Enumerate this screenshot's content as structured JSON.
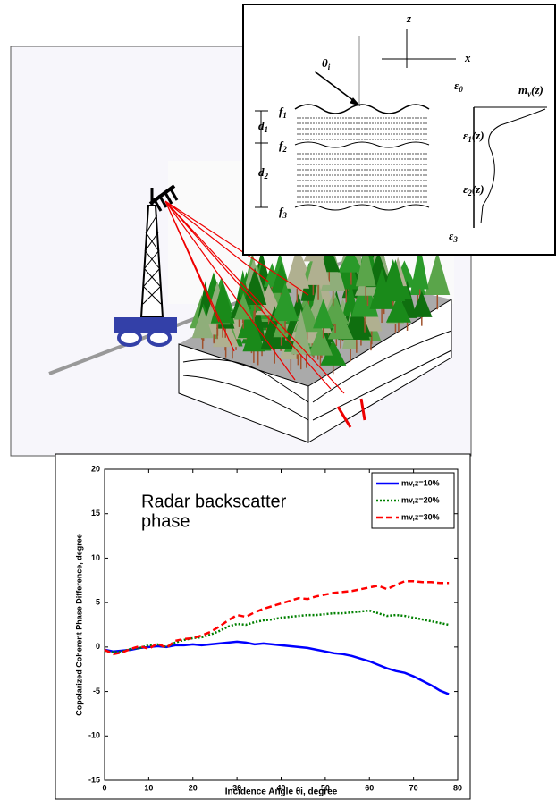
{
  "inset": {
    "labels": [
      {
        "text": "z",
        "sub": ""
      },
      {
        "text": "x",
        "sub": ""
      },
      {
        "text": "θ",
        "sub": "i"
      },
      {
        "text": "ε",
        "sub": "0"
      },
      {
        "text": "m",
        "sub": "v",
        "tail": "(z)"
      },
      {
        "text": "f",
        "sub": "1"
      },
      {
        "text": "d",
        "sub": "1"
      },
      {
        "text": "f",
        "sub": "2"
      },
      {
        "text": "ε",
        "sub": "1",
        "tail": "(z)"
      },
      {
        "text": "d",
        "sub": "2"
      },
      {
        "text": "ε",
        "sub": "2",
        "tail": "(z)"
      },
      {
        "text": "f",
        "sub": "3"
      },
      {
        "text": "ε",
        "sub": "3"
      }
    ]
  },
  "chart_data": {
    "type": "line",
    "annotation": [
      "Radar backscatter",
      "phase"
    ],
    "x_label": "Incidence Angle θi, degree",
    "y_label": "Copolarized Coherent Phase Difference, degree",
    "x": [
      0,
      2,
      4,
      6,
      8,
      10,
      12,
      14,
      16,
      18,
      20,
      22,
      24,
      26,
      28,
      30,
      32,
      34,
      36,
      38,
      40,
      42,
      44,
      46,
      48,
      50,
      52,
      54,
      56,
      58,
      60,
      62,
      64,
      66,
      68,
      70,
      72,
      74,
      76,
      78
    ],
    "series": [
      {
        "name": "mv,z=10%",
        "color": "#0000ff",
        "style": "solid",
        "values": [
          -0.3,
          -0.5,
          -0.4,
          -0.3,
          -0.1,
          0,
          0.1,
          0,
          0.2,
          0.2,
          0.3,
          0.2,
          0.3,
          0.4,
          0.5,
          0.6,
          0.5,
          0.3,
          0.4,
          0.3,
          0.2,
          0.1,
          0,
          -0.1,
          -0.3,
          -0.5,
          -0.7,
          -0.8,
          -1.0,
          -1.3,
          -1.6,
          -2.0,
          -2.4,
          -2.7,
          -2.9,
          -3.3,
          -3.8,
          -4.3,
          -4.9,
          -5.3
        ]
      },
      {
        "name": "mv,z=20%",
        "color": "#008000",
        "style": "dotted",
        "values": [
          -0.4,
          -0.6,
          -0.5,
          -0.2,
          -0.1,
          0.2,
          0.3,
          0,
          0.5,
          0.8,
          1.0,
          1.1,
          1.4,
          1.8,
          2.3,
          2.6,
          2.5,
          2.8,
          3.0,
          3.1,
          3.3,
          3.4,
          3.5,
          3.6,
          3.6,
          3.7,
          3.8,
          3.8,
          3.9,
          4.0,
          4.1,
          3.8,
          3.5,
          3.6,
          3.5,
          3.3,
          3.1,
          2.9,
          2.7,
          2.5
        ]
      },
      {
        "name": "mv,z=30%",
        "color": "#ff0000",
        "style": "dashed",
        "values": [
          -0.3,
          -0.8,
          -0.6,
          -0.2,
          0.1,
          -0.2,
          0.4,
          -0.1,
          0.7,
          0.9,
          1.0,
          1.3,
          1.7,
          2.3,
          3.0,
          3.6,
          3.4,
          3.9,
          4.3,
          4.6,
          4.9,
          5.2,
          5.5,
          5.4,
          5.7,
          5.9,
          6.1,
          6.2,
          6.3,
          6.5,
          6.7,
          6.9,
          6.5,
          7.0,
          7.4,
          7.4,
          7.3,
          7.3,
          7.2,
          7.2
        ]
      }
    ],
    "xlim": [
      0,
      80
    ],
    "xticks": [
      0,
      10,
      20,
      30,
      40,
      50,
      60,
      70,
      80
    ],
    "ylim": [
      -15,
      20
    ],
    "yticks": [
      -15,
      -10,
      -5,
      0,
      5,
      10,
      15,
      20
    ],
    "legend": "upper right"
  }
}
